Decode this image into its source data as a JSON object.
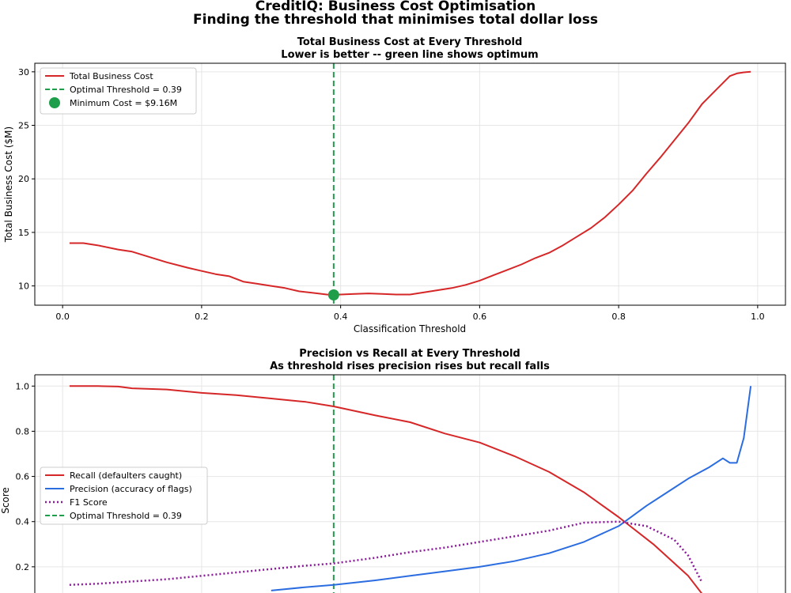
{
  "suptitle": {
    "line1": "CreditIQ: Business Cost Optimisation",
    "line2": "Finding the threshold that minimises total dollar loss"
  },
  "colors": {
    "red": "#d62728",
    "blue": "#2b6de0",
    "purple": "#8b1a9b",
    "green": "#1e9e4a",
    "grid": "#e6e6e6"
  },
  "chart_data": [
    {
      "type": "line",
      "title": "Total Business Cost at Every Threshold",
      "subtitle": "Lower is better -- green line shows optimum",
      "xlabel": "Classification Threshold",
      "ylabel": "Total Business Cost ($M)",
      "xlim": [
        -0.04,
        1.04
      ],
      "ylim": [
        8.2,
        30.8
      ],
      "xticks": [
        0.0,
        0.2,
        0.4,
        0.6,
        0.8,
        1.0
      ],
      "xtick_labels": [
        "0.0",
        "0.2",
        "0.4",
        "0.6",
        "0.8",
        "1.0"
      ],
      "yticks": [
        10,
        15,
        20,
        25,
        30
      ],
      "ytick_labels": [
        "10",
        "15",
        "20",
        "25",
        "30"
      ],
      "grid": true,
      "legend_position": "top-left",
      "legend": [
        "Total Business Cost",
        "Optimal Threshold = 0.39",
        "Minimum Cost = $9.16M"
      ],
      "series": [
        {
          "name": "Total Business Cost",
          "x": [
            0.01,
            0.03,
            0.05,
            0.08,
            0.1,
            0.13,
            0.15,
            0.18,
            0.2,
            0.22,
            0.24,
            0.26,
            0.28,
            0.3,
            0.32,
            0.34,
            0.36,
            0.38,
            0.39,
            0.4,
            0.42,
            0.44,
            0.46,
            0.48,
            0.5,
            0.52,
            0.54,
            0.56,
            0.58,
            0.6,
            0.62,
            0.64,
            0.66,
            0.68,
            0.7,
            0.72,
            0.74,
            0.76,
            0.78,
            0.8,
            0.82,
            0.84,
            0.86,
            0.88,
            0.9,
            0.92,
            0.94,
            0.96,
            0.97,
            0.98,
            0.99
          ],
          "y": [
            14.0,
            14.0,
            13.8,
            13.4,
            13.2,
            12.6,
            12.2,
            11.7,
            11.4,
            11.1,
            10.9,
            10.4,
            10.2,
            10.0,
            9.8,
            9.5,
            9.35,
            9.2,
            9.16,
            9.2,
            9.25,
            9.3,
            9.25,
            9.2,
            9.2,
            9.4,
            9.6,
            9.8,
            10.1,
            10.5,
            11.0,
            11.5,
            12.0,
            12.6,
            13.1,
            13.8,
            14.6,
            15.4,
            16.4,
            17.6,
            18.9,
            20.5,
            22.0,
            23.6,
            25.2,
            27.0,
            28.3,
            29.6,
            29.85,
            29.95,
            30.0
          ]
        }
      ],
      "optimal_threshold": 0.39,
      "minimum_point": {
        "x": 0.39,
        "y": 9.16
      }
    },
    {
      "type": "line",
      "title": "Precision vs Recall at Every Threshold",
      "subtitle": "As threshold rises precision rises but recall falls",
      "xlabel": "",
      "ylabel": "Score",
      "xlim": [
        -0.04,
        1.04
      ],
      "ylim": [
        0.0,
        1.05
      ],
      "yticks": [
        0.2,
        0.4,
        0.6,
        0.8,
        1.0
      ],
      "ytick_labels": [
        "0.2",
        "0.4",
        "0.6",
        "0.8",
        "1.0"
      ],
      "grid": true,
      "legend_position": "center-left",
      "legend": [
        "Recall (defaulters caught)",
        "Precision (accuracy of flags)",
        "F1 Score",
        "Optimal Threshold = 0.39"
      ],
      "series": [
        {
          "name": "Recall (defaulters caught)",
          "x": [
            0.01,
            0.05,
            0.08,
            0.1,
            0.15,
            0.2,
            0.25,
            0.3,
            0.35,
            0.39,
            0.45,
            0.5,
            0.55,
            0.6,
            0.65,
            0.7,
            0.75,
            0.8,
            0.85,
            0.9,
            0.92
          ],
          "y": [
            1.0,
            1.0,
            0.998,
            0.99,
            0.985,
            0.97,
            0.96,
            0.945,
            0.93,
            0.91,
            0.87,
            0.84,
            0.79,
            0.75,
            0.69,
            0.62,
            0.53,
            0.42,
            0.3,
            0.16,
            0.08
          ]
        },
        {
          "name": "Precision (accuracy of flags)",
          "x": [
            0.3,
            0.35,
            0.39,
            0.45,
            0.5,
            0.55,
            0.6,
            0.65,
            0.7,
            0.75,
            0.8,
            0.84,
            0.88,
            0.9,
            0.93,
            0.95,
            0.96,
            0.97,
            0.98,
            0.99
          ],
          "y": [
            0.095,
            0.11,
            0.12,
            0.14,
            0.16,
            0.18,
            0.2,
            0.225,
            0.26,
            0.31,
            0.38,
            0.47,
            0.55,
            0.59,
            0.64,
            0.68,
            0.66,
            0.66,
            0.77,
            1.0
          ]
        },
        {
          "name": "F1 Score",
          "x": [
            0.01,
            0.05,
            0.1,
            0.15,
            0.2,
            0.25,
            0.3,
            0.35,
            0.39,
            0.45,
            0.5,
            0.55,
            0.6,
            0.65,
            0.7,
            0.75,
            0.8,
            0.84,
            0.88,
            0.9,
            0.92
          ],
          "y": [
            0.12,
            0.125,
            0.135,
            0.145,
            0.16,
            0.175,
            0.19,
            0.205,
            0.215,
            0.24,
            0.265,
            0.285,
            0.31,
            0.335,
            0.36,
            0.395,
            0.4,
            0.38,
            0.32,
            0.25,
            0.13
          ]
        }
      ],
      "optimal_threshold": 0.39
    }
  ]
}
